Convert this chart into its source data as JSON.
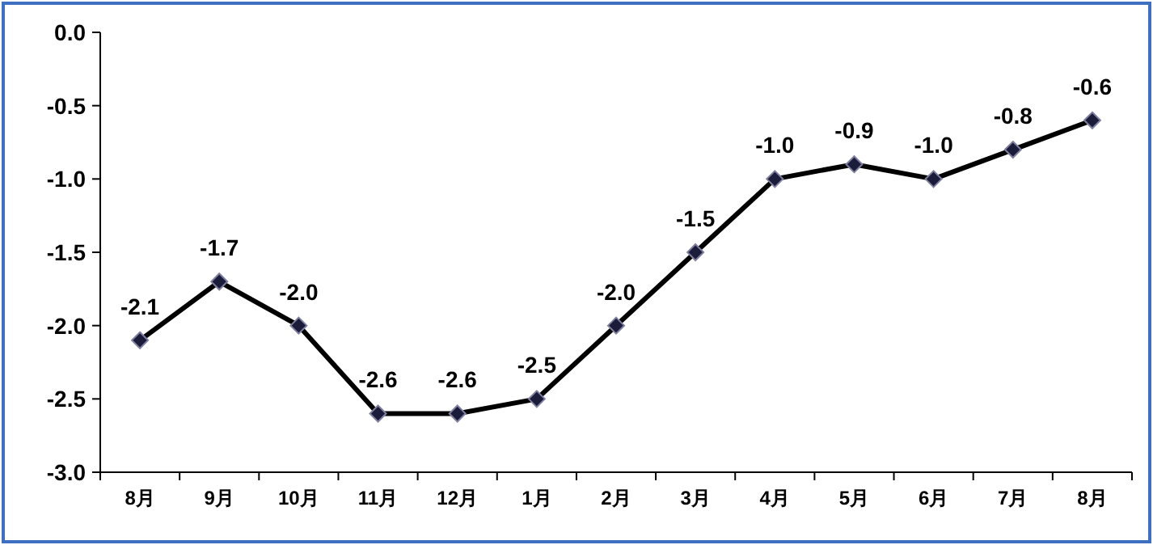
{
  "chart_data": {
    "type": "line",
    "categories": [
      "8月",
      "9月",
      "10月",
      "11月",
      "12月",
      "1月",
      "2月",
      "3月",
      "4月",
      "5月",
      "6月",
      "7月",
      "8月"
    ],
    "series": [
      {
        "color": "#000000",
        "values": [
          -2.1,
          -1.7,
          -2.0,
          -2.6,
          -2.6,
          -2.5,
          -2.0,
          -1.5,
          -1.0,
          -0.9,
          -1.0,
          -0.8,
          -0.6
        ],
        "value_labels": [
          "-2.1",
          "-1.7",
          "-2.0",
          "-2.6",
          "-2.6",
          "-2.5",
          "-2.0",
          "-1.5",
          "-1.0",
          "-0.9",
          "-1.0",
          "-0.8",
          "-0.6"
        ]
      }
    ],
    "ylim": [
      -3.0,
      0.0
    ],
    "yticks": [
      {
        "value": -3.0,
        "label": "-3.0"
      },
      {
        "value": -2.5,
        "label": "-2.5"
      },
      {
        "value": -2.0,
        "label": "-2.0"
      },
      {
        "value": -1.5,
        "label": "-1.5"
      },
      {
        "value": -1.0,
        "label": "-1.0"
      },
      {
        "value": -0.5,
        "label": "-0.5"
      },
      {
        "value": 0.0,
        "label": "0.0"
      }
    ],
    "marker": "diamond",
    "line_style": "solid",
    "grid": false
  }
}
